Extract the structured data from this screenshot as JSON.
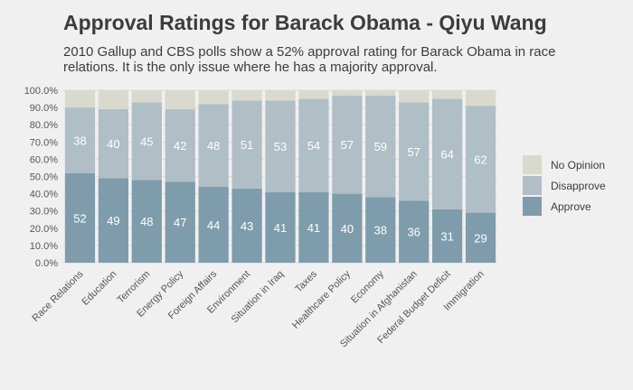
{
  "title": "Approval Ratings for Barack Obama - Qiyu Wang",
  "subtitle": "2010 Gallup and CBS polls show a 52% approval rating for Barack Obama in race relations. It is the only issue where he has a majority approval.",
  "colors": {
    "approve": "#7f9cac",
    "disapprove": "#b0bec6",
    "no_opinion": "#d9d9ce",
    "background": "#f0f0f0",
    "grid": "#dddddd",
    "axis_text": "#555555"
  },
  "legend": [
    {
      "name": "No Opinion",
      "color": "#d9d9ce"
    },
    {
      "name": "Disapprove",
      "color": "#b0bec6"
    },
    {
      "name": "Approve",
      "color": "#7f9cac"
    }
  ],
  "chart_data": {
    "type": "bar",
    "stacked": true,
    "categories": [
      "Race Relations",
      "Education",
      "Terrorism",
      "Energy Policy",
      "Foreign Affairs",
      "Environment",
      "Situation in Iraq",
      "Taxes",
      "Healthcare Policy",
      "Economy",
      "Situation in Afghanistan",
      "Federal Budget Deficit",
      "Immigration"
    ],
    "series": [
      {
        "name": "Approve",
        "values": [
          52,
          49,
          48,
          47,
          44,
          43,
          41,
          41,
          40,
          38,
          36,
          31,
          29
        ]
      },
      {
        "name": "Disapprove",
        "values": [
          38,
          40,
          45,
          42,
          48,
          51,
          53,
          54,
          57,
          59,
          57,
          64,
          62
        ]
      },
      {
        "name": "No Opinion",
        "values": [
          10,
          11,
          7,
          11,
          8,
          6,
          6,
          5,
          3,
          3,
          7,
          5,
          9
        ]
      }
    ],
    "labeled_series": [
      "Approve",
      "Disapprove"
    ],
    "yticks": [
      "0.0%",
      "10.0%",
      "20.0%",
      "30.0%",
      "40.0%",
      "50.0%",
      "60.0%",
      "70.0%",
      "80.0%",
      "90.0%",
      "100.0%"
    ],
    "ylim": [
      0,
      100
    ],
    "grid": true,
    "legend_position": "right"
  }
}
